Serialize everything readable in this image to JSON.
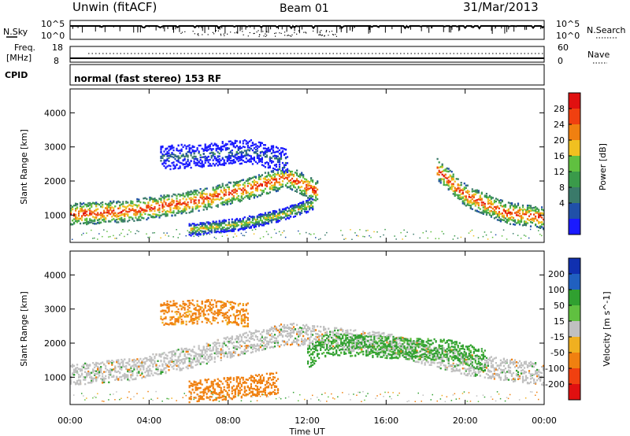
{
  "header": {
    "station": "Unwin (fitACF)",
    "beam": "Beam 01",
    "date": "31/Mar/2013"
  },
  "noise_panel": {
    "left_label": "N.Sky",
    "left_ticks": [
      "10^5",
      "10^0"
    ],
    "right_label": "N.Search",
    "right_ticks": [
      "10^5",
      "10^0"
    ]
  },
  "freq_panel": {
    "left_label_line1": "Freq.",
    "left_label_line2": "[MHz]",
    "left_ticks": [
      "18",
      "8"
    ],
    "right_label": "Nave",
    "right_ticks": [
      "60",
      "0"
    ]
  },
  "cpid_panel": {
    "label": "CPID",
    "mode_text": "normal (fast stereo) 153 RF"
  },
  "colors": {
    "power_scale": [
      "#1a1aff",
      "#2050a8",
      "#3a7a6a",
      "#3a9a4a",
      "#60c040",
      "#f0c020",
      "#f08010",
      "#f04010",
      "#e01010"
    ],
    "velocity_scale": [
      "#e01010",
      "#f04010",
      "#f08010",
      "#f0b020",
      "#c0c0c0",
      "#60c040",
      "#30a030",
      "#2060c0",
      "#1030b0"
    ],
    "gray_gs": "#c0c0c0"
  },
  "chart_data": [
    {
      "type": "heatmap",
      "title": "Power",
      "xlabel": "Time UT",
      "ylabel": "Slant Range [km]",
      "x_ticks": [
        "00:00",
        "04:00",
        "08:00",
        "12:00",
        "16:00",
        "20:00",
        "00:00"
      ],
      "y_ticks": [
        "1000",
        "2000",
        "3000",
        "4000"
      ],
      "ylim": [
        200,
        4700
      ],
      "colorbar": {
        "label": "Power [dB]",
        "ticks": [
          "4",
          "8",
          "12",
          "16",
          "20",
          "24",
          "28"
        ],
        "range": [
          0,
          31
        ]
      },
      "echo_bands": [
        {
          "name": "main",
          "points": [
            [
              0,
              1050
            ],
            [
              3,
              1150
            ],
            [
              6,
              1400
            ],
            [
              9,
              1800
            ],
            [
              11,
              2150
            ],
            [
              12.5,
              1700
            ]
          ],
          "intensity": "high"
        },
        {
          "name": "lower",
          "points": [
            [
              6,
              600
            ],
            [
              8.5,
              750
            ],
            [
              10.5,
              1000
            ],
            [
              12.3,
              1350
            ]
          ],
          "intensity": "medium"
        },
        {
          "name": "upper",
          "points": [
            [
              4.5,
              2700
            ],
            [
              7,
              2800
            ],
            [
              9,
              2900
            ],
            [
              11,
              2600
            ]
          ],
          "intensity": "low"
        },
        {
          "name": "evening",
          "points": [
            [
              18.5,
              2400
            ],
            [
              20,
              1600
            ],
            [
              22,
              1100
            ],
            [
              24,
              950
            ]
          ],
          "intensity": "high"
        }
      ]
    },
    {
      "type": "heatmap",
      "title": "Velocity",
      "xlabel": "Time UT",
      "ylabel": "Slant Range [km]",
      "x_ticks": [
        "00:00",
        "04:00",
        "08:00",
        "12:00",
        "16:00",
        "20:00",
        "00:00"
      ],
      "y_ticks": [
        "1000",
        "2000",
        "3000",
        "4000"
      ],
      "ylim": [
        200,
        4700
      ],
      "colorbar": {
        "label": "Velocity [m s^-1]",
        "ticks": [
          "200",
          "100",
          "50",
          "15",
          "-15",
          "-50",
          "-100",
          "-200"
        ],
        "range": [
          -250,
          250
        ]
      },
      "echo_bands": [
        {
          "name": "ground-scatter",
          "points": [
            [
              0,
              1100
            ],
            [
              3,
              1250
            ],
            [
              6,
              1600
            ],
            [
              9,
              2050
            ],
            [
              11,
              2300
            ],
            [
              16,
              2000
            ],
            [
              20,
              1400
            ],
            [
              24,
              1100
            ]
          ],
          "value": "gray"
        },
        {
          "name": "away",
          "points": [
            [
              6,
              600
            ],
            [
              8.5,
              720
            ],
            [
              10.5,
              850
            ]
          ],
          "value": -60
        },
        {
          "name": "upper",
          "points": [
            [
              4.5,
              2900
            ],
            [
              7,
              2950
            ],
            [
              9,
              2850
            ]
          ],
          "value": -40
        },
        {
          "name": "toward",
          "points": [
            [
              12,
              1600
            ],
            [
              13,
              2000
            ],
            [
              19.5,
              1800
            ],
            [
              21,
              1500
            ]
          ],
          "value": 40
        }
      ]
    }
  ]
}
